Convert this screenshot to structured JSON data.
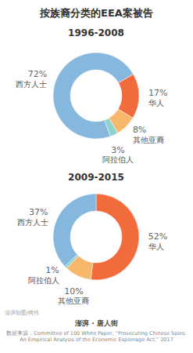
{
  "title": "按族裔分类的EEA案被告",
  "credit": "澎湃制图/何伟",
  "logo": "澎湃 · 唐人街",
  "source": "数据来源：Committee of 100 White Paper, “Prosecuting Chinese Spies: An Empirical Analysis of the Economic Espionage Act,” 2017",
  "chart_data": [
    {
      "type": "donut",
      "title": "1996-2008",
      "categories": [
        "华人",
        "其他亚裔",
        "阿拉伯人",
        "西方人士"
      ],
      "values": [
        17,
        8,
        3,
        72
      ],
      "value_labels": [
        "17%",
        "8%",
        "3%",
        "72%"
      ],
      "colors": [
        "#f26b3c",
        "#f8b86c",
        "#8fd3cf",
        "#86b7dd"
      ],
      "data_labels": true
    },
    {
      "type": "donut",
      "title": "2009-2015",
      "categories": [
        "华人",
        "其他亚裔",
        "阿拉伯人",
        "西方人士"
      ],
      "values": [
        52,
        10,
        1,
        37
      ],
      "value_labels": [
        "52%",
        "10%",
        "1%",
        "37%"
      ],
      "colors": [
        "#f26b3c",
        "#f8b86c",
        "#8fd3cf",
        "#86b7dd"
      ],
      "data_labels": true
    }
  ]
}
